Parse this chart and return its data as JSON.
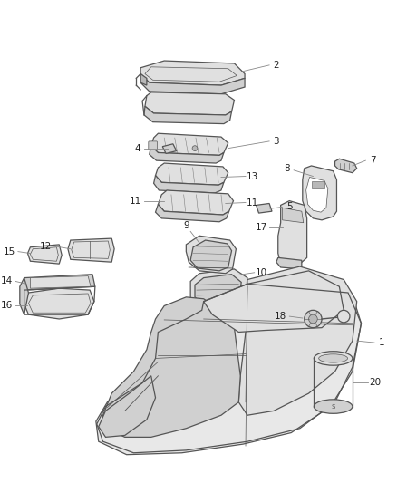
{
  "background_color": "#ffffff",
  "line_color": "#555555",
  "leader_color": "#888888",
  "fig_width": 4.38,
  "fig_height": 5.33,
  "dpi": 100
}
